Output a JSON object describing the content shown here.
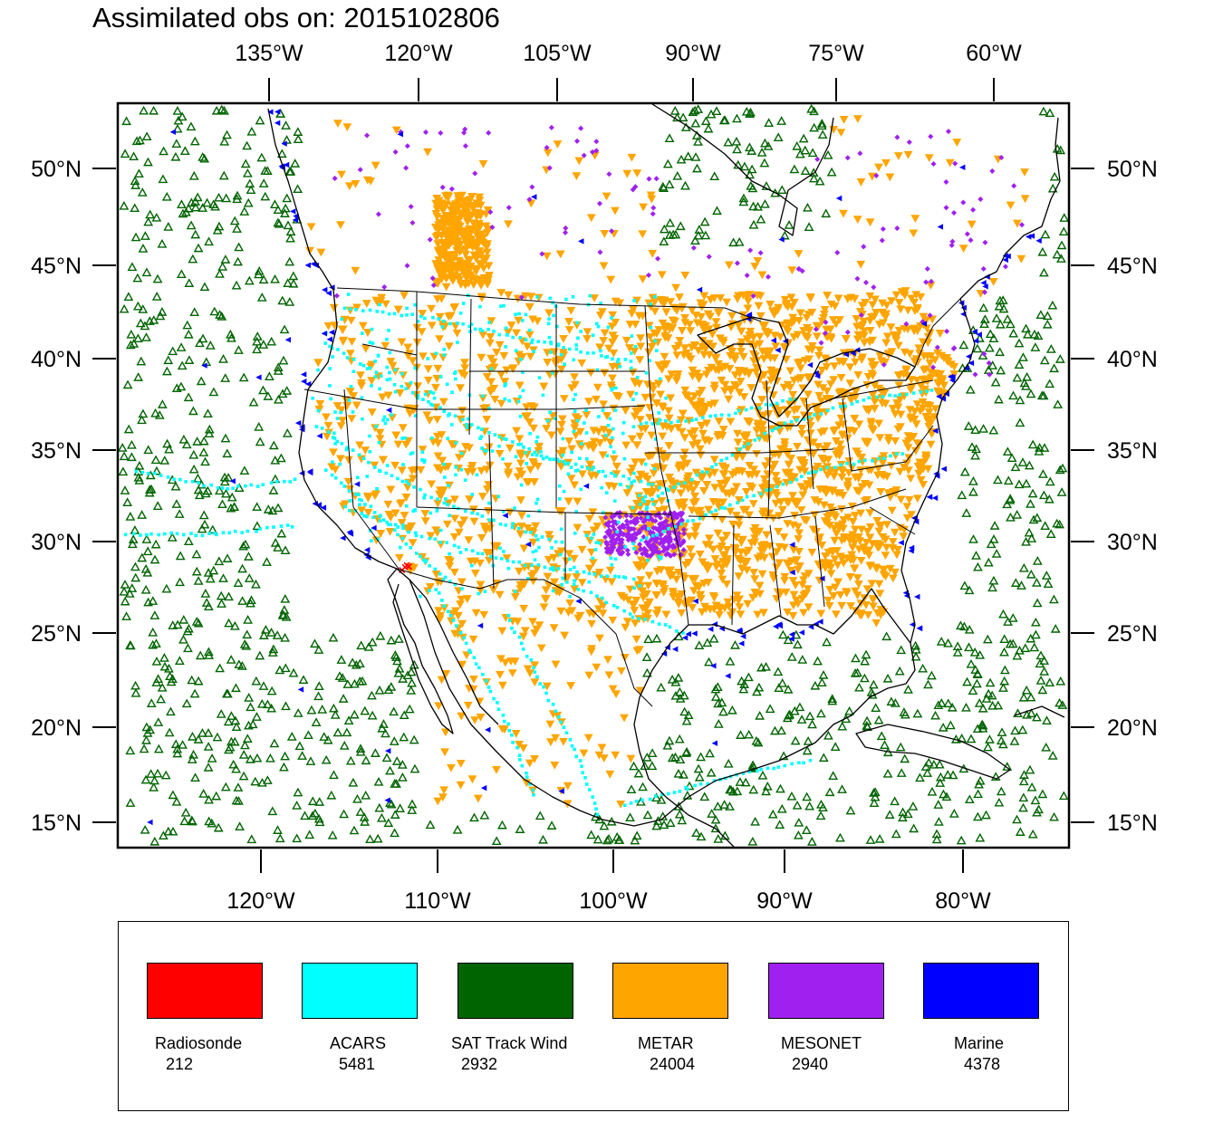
{
  "title": "Assimilated obs on: 2015102806",
  "top_lon_labels": [
    "135°W",
    "120°W",
    "105°W",
    "90°W",
    "75°W",
    "60°W"
  ],
  "bottom_lon_labels": [
    "120°W",
    "110°W",
    "100°W",
    "90°W",
    "80°W"
  ],
  "lat_labels": [
    "50°N",
    "45°N",
    "40°N",
    "35°N",
    "30°N",
    "25°N",
    "20°N",
    "15°N"
  ],
  "legend": [
    {
      "name": "Radiosonde",
      "count": "212",
      "color": "#ff0000"
    },
    {
      "name": "ACARS",
      "count": "5481",
      "color": "#00ffff"
    },
    {
      "name": "SAT Track Wind",
      "count": "2932",
      "color": "#006400"
    },
    {
      "name": "METAR",
      "count": "24004",
      "color": "#ffa500"
    },
    {
      "name": "MESONET",
      "count": "2940",
      "color": "#a020f0"
    },
    {
      "name": "Marine",
      "count": "4378",
      "color": "#0000ff"
    }
  ],
  "colors": {
    "radiosonde": "#ff0000",
    "acars": "#00ffff",
    "sat_track_wind": "#006400",
    "metar": "#ffa500",
    "mesonet": "#a020f0",
    "marine": "#0000ff",
    "coastline": "#000000"
  },
  "map": {
    "projection": "lambert-conformal",
    "lon_range": [
      "128°W",
      "74°W"
    ],
    "lat_range": [
      "14°N",
      "53°N"
    ]
  }
}
